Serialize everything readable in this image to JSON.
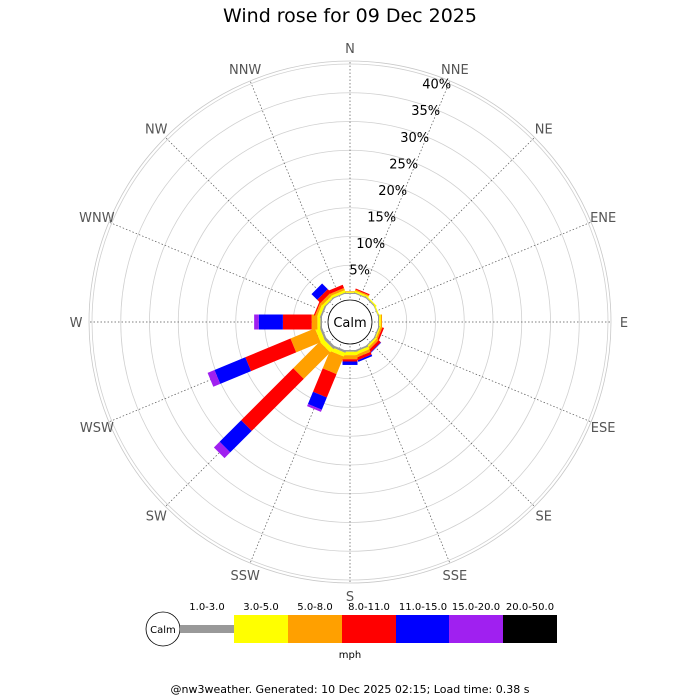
{
  "chart_data": {
    "type": "windrose",
    "title": "Wind rose for 09 Dec 2025",
    "directions": [
      "N",
      "NNE",
      "NE",
      "ENE",
      "E",
      "ESE",
      "SE",
      "SSE",
      "S",
      "SSW",
      "SW",
      "WSW",
      "W",
      "WNW",
      "NW",
      "NNW"
    ],
    "radial_ticks": [
      5,
      10,
      15,
      20,
      25,
      30,
      35,
      40
    ],
    "radial_tick_labels": [
      "5%",
      "10%",
      "15%",
      "20%",
      "25%",
      "30%",
      "35%",
      "40%"
    ],
    "rmax": 40,
    "calm_label": "Calm",
    "speed_bins": [
      {
        "label": "1.0-3.0",
        "color": "#999999"
      },
      {
        "label": "3.0-5.0",
        "color": "#ffff00"
      },
      {
        "label": "5.0-8.0",
        "color": "#ffa000"
      },
      {
        "label": "8.0-11.0",
        "color": "#ff0000"
      },
      {
        "label": "11.0-15.0",
        "color": "#0000ff"
      },
      {
        "label": "15.0-20.0",
        "color": "#a020f0"
      },
      {
        "label": "20.0-50.0",
        "color": "#000000"
      }
    ],
    "units": "mph",
    "series": [
      {
        "direction": "N",
        "values": [
          0.2,
          0.2,
          0.1,
          0,
          0,
          0,
          0
        ]
      },
      {
        "direction": "NNE",
        "values": [
          0.2,
          0.3,
          0.2,
          0.2,
          0,
          0,
          0
        ]
      },
      {
        "direction": "NE",
        "values": [
          0.2,
          0.2,
          0,
          0,
          0,
          0,
          0
        ]
      },
      {
        "direction": "ENE",
        "values": [
          0.1,
          0.2,
          0,
          0,
          0,
          0,
          0
        ]
      },
      {
        "direction": "E",
        "values": [
          0.2,
          0.3,
          0.2,
          0,
          0,
          0,
          0
        ]
      },
      {
        "direction": "ESE",
        "values": [
          0.2,
          0.2,
          0.3,
          0.3,
          0,
          0,
          0
        ]
      },
      {
        "direction": "SE",
        "values": [
          0.2,
          0.3,
          0.4,
          0.5,
          0.1,
          0,
          0
        ]
      },
      {
        "direction": "SSE",
        "values": [
          0.3,
          0.5,
          0.5,
          0.5,
          0.3,
          0,
          0
        ]
      },
      {
        "direction": "S",
        "values": [
          0.3,
          0.6,
          0.7,
          0.4,
          0.6,
          0,
          0
        ]
      },
      {
        "direction": "SSW",
        "values": [
          0.4,
          0.7,
          3.3,
          4.4,
          2.3,
          0.4,
          0
        ]
      },
      {
        "direction": "SW",
        "values": [
          0.5,
          0.8,
          6.5,
          12.8,
          5.3,
          1.4,
          0
        ]
      },
      {
        "direction": "WSW",
        "values": [
          0.4,
          0.8,
          4.6,
          8.5,
          5.8,
          1.3,
          0
        ]
      },
      {
        "direction": "W",
        "values": [
          0.3,
          0.5,
          1.0,
          5.0,
          4.2,
          0.8,
          0
        ]
      },
      {
        "direction": "WNW",
        "values": [
          0.3,
          0.5,
          0.4,
          0.2,
          0,
          0,
          0
        ]
      },
      {
        "direction": "NW",
        "values": [
          0.2,
          0.4,
          0.5,
          0.8,
          1.4,
          0,
          0
        ]
      },
      {
        "direction": "NNW",
        "values": [
          0.2,
          0.4,
          0.4,
          0.6,
          0,
          0,
          0
        ]
      }
    ]
  },
  "footer": "@nw3weather. Generated: 10 Dec 2025 02:15; Load time: 0.38 s"
}
